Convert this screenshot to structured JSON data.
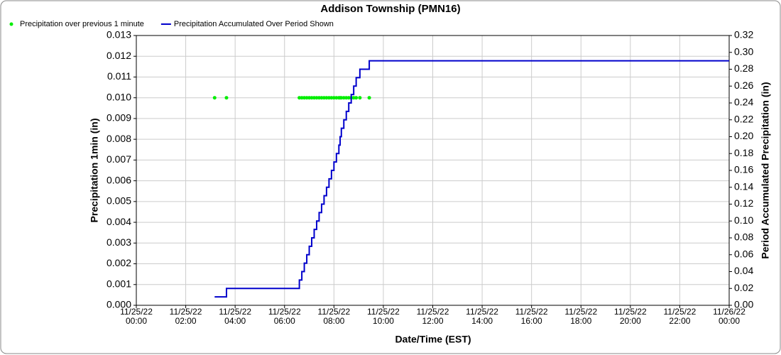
{
  "chart_data": {
    "type": "line",
    "title": "Addison Township (PMN16)",
    "x_label": "Date/Time (EST)",
    "y_label": "Precipitation 1min (in)",
    "y2_label": "Period Accumulated Precipitation (in)",
    "grid": true,
    "legend": "top-left",
    "xlim": [
      0,
      24
    ],
    "xticks": [
      {
        "value": 0,
        "label": "11/25/22\n00:00"
      },
      {
        "value": 2,
        "label": "11/25/22\n02:00"
      },
      {
        "value": 4,
        "label": "11/25/22\n04:00"
      },
      {
        "value": 6,
        "label": "11/25/22\n06:00"
      },
      {
        "value": 8,
        "label": "11/25/22\n08:00"
      },
      {
        "value": 10,
        "label": "11/25/22\n10:00"
      },
      {
        "value": 12,
        "label": "11/25/22\n12:00"
      },
      {
        "value": 14,
        "label": "11/25/22\n14:00"
      },
      {
        "value": 16,
        "label": "11/25/22\n16:00"
      },
      {
        "value": 18,
        "label": "11/25/22\n18:00"
      },
      {
        "value": 20,
        "label": "11/25/22\n20:00"
      },
      {
        "value": 22,
        "label": "11/25/22\n22:00"
      },
      {
        "value": 24,
        "label": "11/26/22\n00:00"
      }
    ],
    "ylim": [
      0,
      0.013
    ],
    "yticks": [
      {
        "value": 0,
        "label": "0.000"
      },
      {
        "value": 0.001,
        "label": "0.001"
      },
      {
        "value": 0.002,
        "label": "0.002"
      },
      {
        "value": 0.003,
        "label": "0.003"
      },
      {
        "value": 0.004,
        "label": "0.004"
      },
      {
        "value": 0.005,
        "label": "0.005"
      },
      {
        "value": 0.006,
        "label": "0.006"
      },
      {
        "value": 0.007,
        "label": "0.007"
      },
      {
        "value": 0.008,
        "label": "0.008"
      },
      {
        "value": 0.009,
        "label": "0.009"
      },
      {
        "value": 0.01,
        "label": "0.010"
      },
      {
        "value": 0.011,
        "label": "0.011"
      },
      {
        "value": 0.012,
        "label": "0.012"
      },
      {
        "value": 0.013,
        "label": "0.013"
      }
    ],
    "y2lim": [
      0,
      0.32
    ],
    "y2ticks": [
      {
        "value": 0,
        "label": "0.00"
      },
      0.02,
      0.04,
      0.06,
      0.08,
      {
        "value": 0.1,
        "label": "0.10"
      },
      0.12,
      0.14,
      0.16,
      0.18,
      {
        "value": 0.2,
        "label": "0.20"
      },
      0.22,
      0.24,
      0.26,
      0.28,
      {
        "value": 0.3,
        "label": "0.30"
      },
      0.32
    ],
    "series": [
      {
        "name": "Precipitation over previous 1 minute",
        "color": "#00ee00",
        "type": "scatter",
        "x": [
          3.17,
          3.65,
          6.6,
          6.7,
          6.8,
          6.9,
          7.0,
          7.1,
          7.2,
          7.3,
          7.4,
          7.5,
          7.6,
          7.7,
          7.8,
          7.9,
          8.0,
          8.1,
          8.2,
          8.25,
          8.3,
          8.4,
          8.5,
          8.6,
          8.7,
          8.8,
          8.9,
          9.05,
          9.43
        ],
        "values": [
          0.01,
          0.01,
          0.01,
          0.01,
          0.01,
          0.01,
          0.01,
          0.01,
          0.01,
          0.01,
          0.01,
          0.01,
          0.01,
          0.01,
          0.01,
          0.01,
          0.01,
          0.01,
          0.01,
          0.01,
          0.01,
          0.01,
          0.01,
          0.01,
          0.01,
          0.01,
          0.01,
          0.01,
          0.01
        ]
      },
      {
        "name": "Precipitation Accumulated Over Period Shown",
        "color": "#0000cc",
        "type": "step",
        "axis": "y2",
        "x": [
          3.17,
          3.65,
          6.6,
          6.7,
          6.8,
          6.9,
          7.0,
          7.1,
          7.2,
          7.3,
          7.4,
          7.5,
          7.6,
          7.7,
          7.8,
          7.9,
          8.0,
          8.1,
          8.2,
          8.25,
          8.3,
          8.4,
          8.5,
          8.6,
          8.7,
          8.8,
          8.9,
          9.05,
          9.43,
          24
        ],
        "values": [
          0.01,
          0.02,
          0.03,
          0.04,
          0.05,
          0.06,
          0.07,
          0.08,
          0.09,
          0.1,
          0.11,
          0.12,
          0.13,
          0.14,
          0.15,
          0.16,
          0.17,
          0.18,
          0.19,
          0.2,
          0.21,
          0.22,
          0.23,
          0.24,
          0.25,
          0.26,
          0.27,
          0.28,
          0.29,
          0.29
        ]
      }
    ]
  }
}
